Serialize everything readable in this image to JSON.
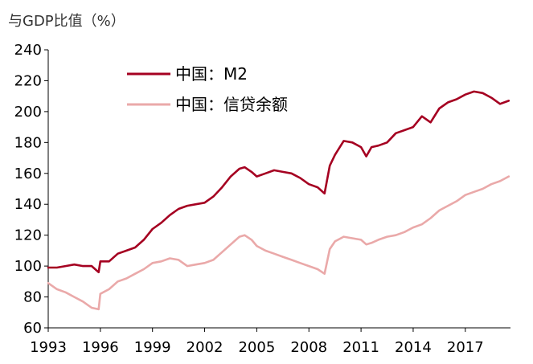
{
  "chart_data": {
    "type": "line",
    "title": "",
    "ylabel": "与GDP比值（%）",
    "xlabel": "",
    "ylim": [
      60,
      240
    ],
    "yticks": [
      60,
      80,
      100,
      120,
      140,
      160,
      180,
      200,
      220,
      240
    ],
    "xlim": [
      1993.0,
      2019.6
    ],
    "xticks": [
      1993,
      1996,
      1999,
      2002,
      2005,
      2008,
      2011,
      2014,
      2017
    ],
    "xtick_labels": [
      "1993",
      "1996",
      "1999",
      "2002",
      "2005",
      "2008",
      "2011",
      "2014",
      "2017"
    ],
    "grid": false,
    "legend_position": "top-left",
    "series": [
      {
        "name": "中国：M2",
        "color": "#a50021",
        "x": [
          1993.0,
          1993.5,
          1994.0,
          1994.5,
          1995.0,
          1995.5,
          1995.9,
          1996.0,
          1996.5,
          1997.0,
          1997.5,
          1998.0,
          1998.5,
          1999.0,
          1999.5,
          2000.0,
          2000.5,
          2001.0,
          2001.5,
          2002.0,
          2002.5,
          2003.0,
          2003.5,
          2004.0,
          2004.3,
          2004.7,
          2005.0,
          2005.5,
          2006.0,
          2006.5,
          2007.0,
          2007.5,
          2008.0,
          2008.5,
          2008.9,
          2009.2,
          2009.5,
          2010.0,
          2010.5,
          2011.0,
          2011.3,
          2011.6,
          2012.0,
          2012.5,
          2013.0,
          2013.5,
          2014.0,
          2014.5,
          2015.0,
          2015.5,
          2016.0,
          2016.5,
          2017.0,
          2017.5,
          2018.0,
          2018.5,
          2019.0,
          2019.5
        ],
        "values": [
          99,
          99,
          100,
          101,
          100,
          100,
          96,
          103,
          103,
          108,
          110,
          112,
          117,
          124,
          128,
          133,
          137,
          139,
          140,
          141,
          145,
          151,
          158,
          163,
          164,
          161,
          158,
          160,
          162,
          161,
          160,
          157,
          153,
          151,
          147,
          165,
          172,
          181,
          180,
          177,
          171,
          177,
          178,
          180,
          186,
          188,
          190,
          197,
          193,
          202,
          206,
          208,
          211,
          213,
          212,
          209,
          205,
          207
        ]
      },
      {
        "name": "中国：信贷余额",
        "color": "#eaa9a9",
        "x": [
          1993.0,
          1993.5,
          1994.0,
          1994.5,
          1995.0,
          1995.5,
          1995.9,
          1996.0,
          1996.5,
          1997.0,
          1997.5,
          1998.0,
          1998.5,
          1999.0,
          1999.5,
          2000.0,
          2000.5,
          2001.0,
          2001.5,
          2002.0,
          2002.5,
          2003.0,
          2003.5,
          2004.0,
          2004.3,
          2004.7,
          2005.0,
          2005.5,
          2006.0,
          2006.5,
          2007.0,
          2007.5,
          2008.0,
          2008.5,
          2008.9,
          2009.2,
          2009.5,
          2010.0,
          2010.5,
          2011.0,
          2011.3,
          2011.6,
          2012.0,
          2012.5,
          2013.0,
          2013.5,
          2014.0,
          2014.5,
          2015.0,
          2015.5,
          2016.0,
          2016.5,
          2017.0,
          2017.5,
          2018.0,
          2018.5,
          2019.0,
          2019.5
        ],
        "values": [
          89,
          85,
          83,
          80,
          77,
          73,
          72,
          82,
          85,
          90,
          92,
          95,
          98,
          102,
          103,
          105,
          104,
          100,
          101,
          102,
          104,
          109,
          114,
          119,
          120,
          117,
          113,
          110,
          108,
          106,
          104,
          102,
          100,
          98,
          95,
          111,
          116,
          119,
          118,
          117,
          114,
          115,
          117,
          119,
          120,
          122,
          125,
          127,
          131,
          136,
          139,
          142,
          146,
          148,
          150,
          153,
          155,
          158
        ]
      }
    ]
  }
}
